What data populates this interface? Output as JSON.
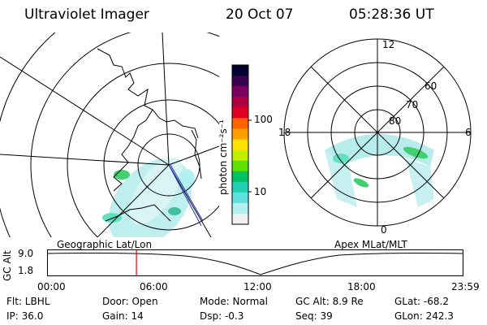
{
  "header": {
    "title": "Ultraviolet Imager",
    "date": "20 Oct 07",
    "time": "05:28:36 UT"
  },
  "colorbar": {
    "label": "photon cm⁻²s⁻¹",
    "ticks": [
      "100",
      "10"
    ],
    "colors": [
      "#000030",
      "#3a0050",
      "#7a0060",
      "#b00040",
      "#e00020",
      "#ff6000",
      "#ffa000",
      "#ffe000",
      "#c0f000",
      "#60e000",
      "#00c060",
      "#20d0b0",
      "#60e0e0",
      "#b0f0f0",
      "#f0f0f0"
    ]
  },
  "panels": {
    "left_label": "Geographic Lat/Lon",
    "right_label": "Apex MLat/MLT",
    "right_dial": {
      "hour_12": "12",
      "hour_18": "18",
      "hour_6": "6",
      "hour_0": "0",
      "lat_60": "60",
      "lat_70": "70",
      "lat_80": "80"
    }
  },
  "altitude_plot": {
    "axis_label": "GC Alt",
    "y_ticks": [
      "9.0",
      "1.8"
    ],
    "x_ticks": [
      "00:00",
      "06:00",
      "12:00",
      "18:00",
      "23:59"
    ],
    "current_time_fraction": 0.215,
    "marker_color": "#dd0000"
  },
  "info": {
    "flt": "Flt: LBHL",
    "ip": "IP: 36.0",
    "door": "Door: Open",
    "gain": "Gain: 14",
    "mode": "Mode: Normal",
    "dsp": "Dsp:    -0.3",
    "gcalt": "GC Alt: 8.9 Re",
    "seq": "Seq: 39",
    "glat": "GLat: -68.2",
    "glon": "GLon: 242.3"
  }
}
